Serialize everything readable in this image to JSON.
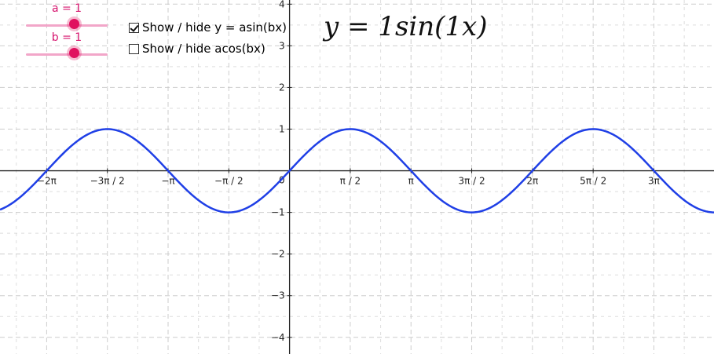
{
  "sliders": [
    {
      "label": "a = 1",
      "value": 1
    },
    {
      "label": "b = 1",
      "value": 1
    }
  ],
  "checkboxes": [
    {
      "label": "Show / hide y = asin(bx)",
      "checked": true
    },
    {
      "label": "Show / hide acos(bx)",
      "checked": false
    }
  ],
  "equation": "y = 1sin(1x)",
  "colors": {
    "curve": "#1f3fe6",
    "slider": "#e0115f",
    "grid": "#c8c8c8"
  },
  "chart_data": {
    "type": "line",
    "title": "",
    "xlabel": "",
    "ylabel": "",
    "xlim": [
      -7.49,
      10.98
    ],
    "ylim": [
      -4.4,
      4.1
    ],
    "grid": true,
    "x_ticks": [
      {
        "value": -6.2832,
        "label": "−2π"
      },
      {
        "value": -4.7124,
        "label": "−3π / 2"
      },
      {
        "value": -3.1416,
        "label": "−π"
      },
      {
        "value": -1.5708,
        "label": "−π / 2"
      },
      {
        "value": 1.5708,
        "label": "π / 2"
      },
      {
        "value": 3.1416,
        "label": "π"
      },
      {
        "value": 4.7124,
        "label": "3π / 2"
      },
      {
        "value": 6.2832,
        "label": "2π"
      },
      {
        "value": 7.854,
        "label": "5π / 2"
      },
      {
        "value": 9.4248,
        "label": "3π"
      }
    ],
    "y_ticks": [
      {
        "value": 4,
        "label": "4"
      },
      {
        "value": 3,
        "label": "3"
      },
      {
        "value": 2,
        "label": "2"
      },
      {
        "value": 1,
        "label": "1"
      },
      {
        "value": -1,
        "label": "−1"
      },
      {
        "value": -2,
        "label": "−2"
      },
      {
        "value": -3,
        "label": "−3"
      },
      {
        "value": -4,
        "label": "−4"
      }
    ],
    "origin_label": "0",
    "series": [
      {
        "function": "a*sin(b*x)",
        "a": 1,
        "b": 1
      }
    ]
  }
}
